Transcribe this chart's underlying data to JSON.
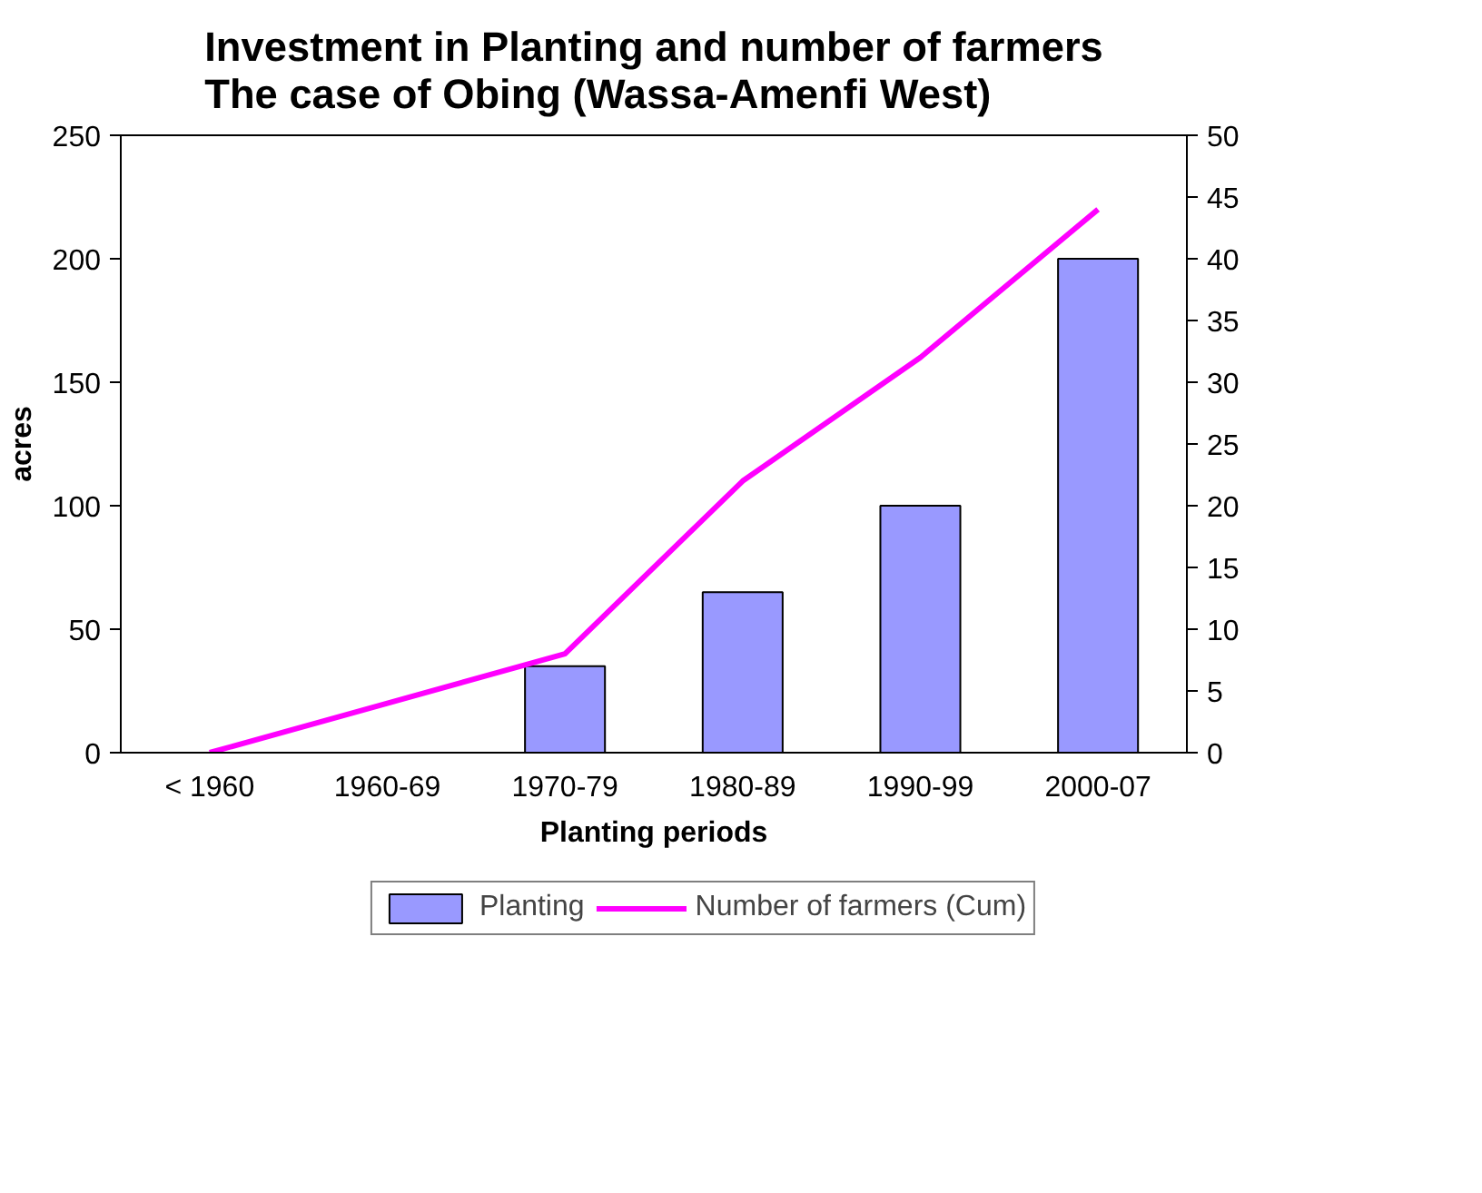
{
  "chart_data": {
    "type": "bar",
    "title": "Investment in Planting and number of farmers\nThe case of Obing (Wassa-Amenfi West)",
    "xlabel": "Planting periods",
    "ylabel": "acres",
    "categories": [
      "< 1960",
      "1960-69",
      "1970-79",
      "1980-89",
      "1990-99",
      "2000-07"
    ],
    "series": [
      {
        "name": "Planting",
        "color": "#9999ff",
        "values": [
          null,
          null,
          35,
          65,
          100,
          200
        ]
      },
      {
        "name": "Number of farmers (Cum)",
        "type": "line",
        "axis": "y2",
        "color": "#ff00ff",
        "values": [
          0,
          4,
          8,
          22,
          32,
          44
        ]
      }
    ],
    "ylim": [
      0,
      250
    ],
    "yticks": [
      0,
      50,
      100,
      150,
      200,
      250
    ],
    "y2lim": [
      0,
      50
    ],
    "y2ticks": [
      0,
      5,
      10,
      15,
      20,
      25,
      30,
      35,
      40,
      45,
      50
    ],
    "grid": false,
    "legend": "bottom",
    "marker": "none",
    "line_style": "solid"
  }
}
